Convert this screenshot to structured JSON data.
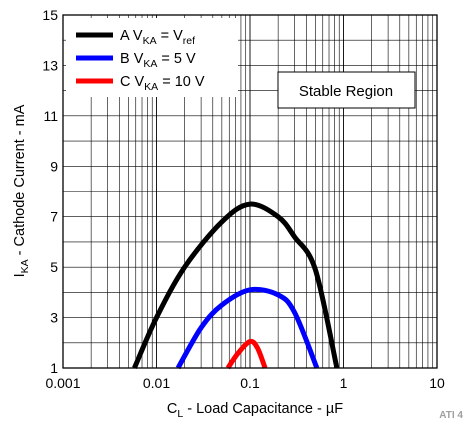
{
  "chart_data": {
    "type": "line",
    "x_scale": "log",
    "xlim": [
      0.001,
      10
    ],
    "ylim": [
      1,
      15
    ],
    "x_ticks": [
      {
        "value": 0.001,
        "label": "0.001"
      },
      {
        "value": 0.01,
        "label": "0.01"
      },
      {
        "value": 0.1,
        "label": "0.1"
      },
      {
        "value": 1,
        "label": "1"
      },
      {
        "value": 10,
        "label": "10"
      }
    ],
    "y_ticks": [
      1,
      3,
      5,
      7,
      9,
      11,
      13,
      15
    ],
    "grid": true,
    "xlabel": {
      "main": "C",
      "sub": "L",
      "rest": " - Load Capacitance - µF"
    },
    "ylabel": {
      "main": "I",
      "sub": "KA",
      "rest": " - Cathode Current - mA"
    },
    "legend_position": "top-left",
    "series": [
      {
        "name": {
          "main": "A V",
          "sub": "KA",
          "rest": " = V",
          "sub2": "ref"
        },
        "color": "#000000",
        "points": [
          [
            0.0058,
            1.0
          ],
          [
            0.01,
            3.0
          ],
          [
            0.02,
            5.0
          ],
          [
            0.05,
            6.8
          ],
          [
            0.1,
            7.5
          ],
          [
            0.2,
            7.0
          ],
          [
            0.3,
            6.2
          ],
          [
            0.5,
            4.9
          ],
          [
            0.85,
            1.0
          ]
        ]
      },
      {
        "name": {
          "main": "B V",
          "sub": "KA",
          "rest": " = 5 V"
        },
        "color": "#0000ff",
        "points": [
          [
            0.017,
            1.0
          ],
          [
            0.03,
            2.6
          ],
          [
            0.05,
            3.5
          ],
          [
            0.1,
            4.1
          ],
          [
            0.2,
            3.9
          ],
          [
            0.3,
            3.2
          ],
          [
            0.52,
            1.0
          ]
        ]
      },
      {
        "name": {
          "main": "C V",
          "sub": "KA",
          "rest": " = 10 V"
        },
        "color": "#ff0000",
        "points": [
          [
            0.058,
            1.0
          ],
          [
            0.075,
            1.6
          ],
          [
            0.1,
            2.05
          ],
          [
            0.12,
            1.8
          ],
          [
            0.145,
            1.0
          ]
        ]
      }
    ],
    "annotations": [
      "Stable Region"
    ],
    "figure_id": "ATI 4"
  }
}
